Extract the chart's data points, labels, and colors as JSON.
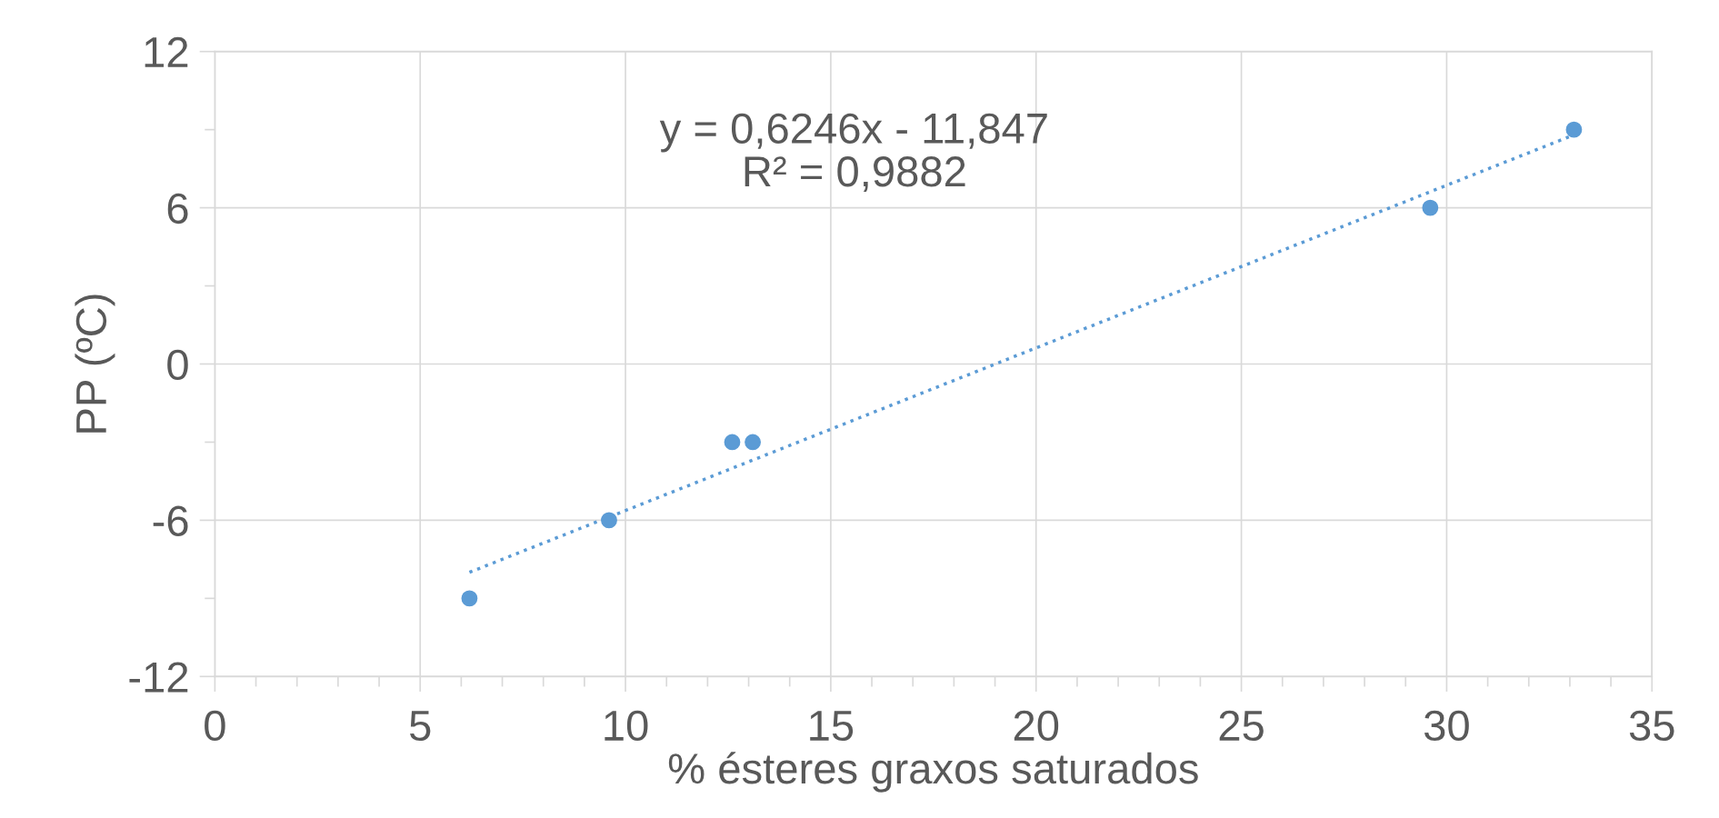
{
  "chart_data": {
    "type": "scatter",
    "xlabel": "% ésteres graxos saturados",
    "ylabel": "PP (ºC)",
    "annotations": [
      "y = 0,6246x - 11,847\nR² = 0,9882"
    ],
    "series": [
      {
        "type": "scatter",
        "color": "#5b9bd5",
        "marker": "circle",
        "x": [
          6.2,
          9.6,
          12.6,
          13.1,
          29.6,
          33.1
        ],
        "values": [
          -9,
          -6,
          -3,
          -3,
          6,
          9
        ]
      },
      {
        "type": "line",
        "color": "#5b9bd5",
        "marker": "none",
        "line_style": "dotted",
        "x": [
          6.2,
          33.1
        ],
        "values": [
          -8.0,
          8.8
        ]
      }
    ],
    "xlim": [
      0,
      35
    ],
    "xticks": [
      0,
      {
        "value": 1,
        "label": null
      },
      {
        "value": 2,
        "label": null
      },
      {
        "value": 3,
        "label": null
      },
      {
        "value": 4,
        "label": null
      },
      5,
      {
        "value": 6,
        "label": null
      },
      {
        "value": 7,
        "label": null
      },
      {
        "value": 8,
        "label": null
      },
      {
        "value": 9,
        "label": null
      },
      10,
      {
        "value": 11,
        "label": null
      },
      {
        "value": 12,
        "label": null
      },
      {
        "value": 13,
        "label": null
      },
      {
        "value": 14,
        "label": null
      },
      15,
      {
        "value": 16,
        "label": null
      },
      {
        "value": 17,
        "label": null
      },
      {
        "value": 18,
        "label": null
      },
      {
        "value": 19,
        "label": null
      },
      20,
      {
        "value": 21,
        "label": null
      },
      {
        "value": 22,
        "label": null
      },
      {
        "value": 23,
        "label": null
      },
      {
        "value": 24,
        "label": null
      },
      25,
      {
        "value": 26,
        "label": null
      },
      {
        "value": 27,
        "label": null
      },
      {
        "value": 28,
        "label": null
      },
      {
        "value": 29,
        "label": null
      },
      30,
      {
        "value": 31,
        "label": null
      },
      {
        "value": 32,
        "label": null
      },
      {
        "value": 33,
        "label": null
      },
      {
        "value": 34,
        "label": null
      },
      35
    ],
    "ylim": [
      -12,
      12
    ],
    "yticks": [
      -12,
      {
        "value": -9,
        "label": null
      },
      -6,
      {
        "value": -3,
        "label": null
      },
      0,
      {
        "value": 3,
        "label": null
      },
      6,
      {
        "value": 9,
        "label": null
      },
      12
    ],
    "grid": true,
    "legend": false
  }
}
